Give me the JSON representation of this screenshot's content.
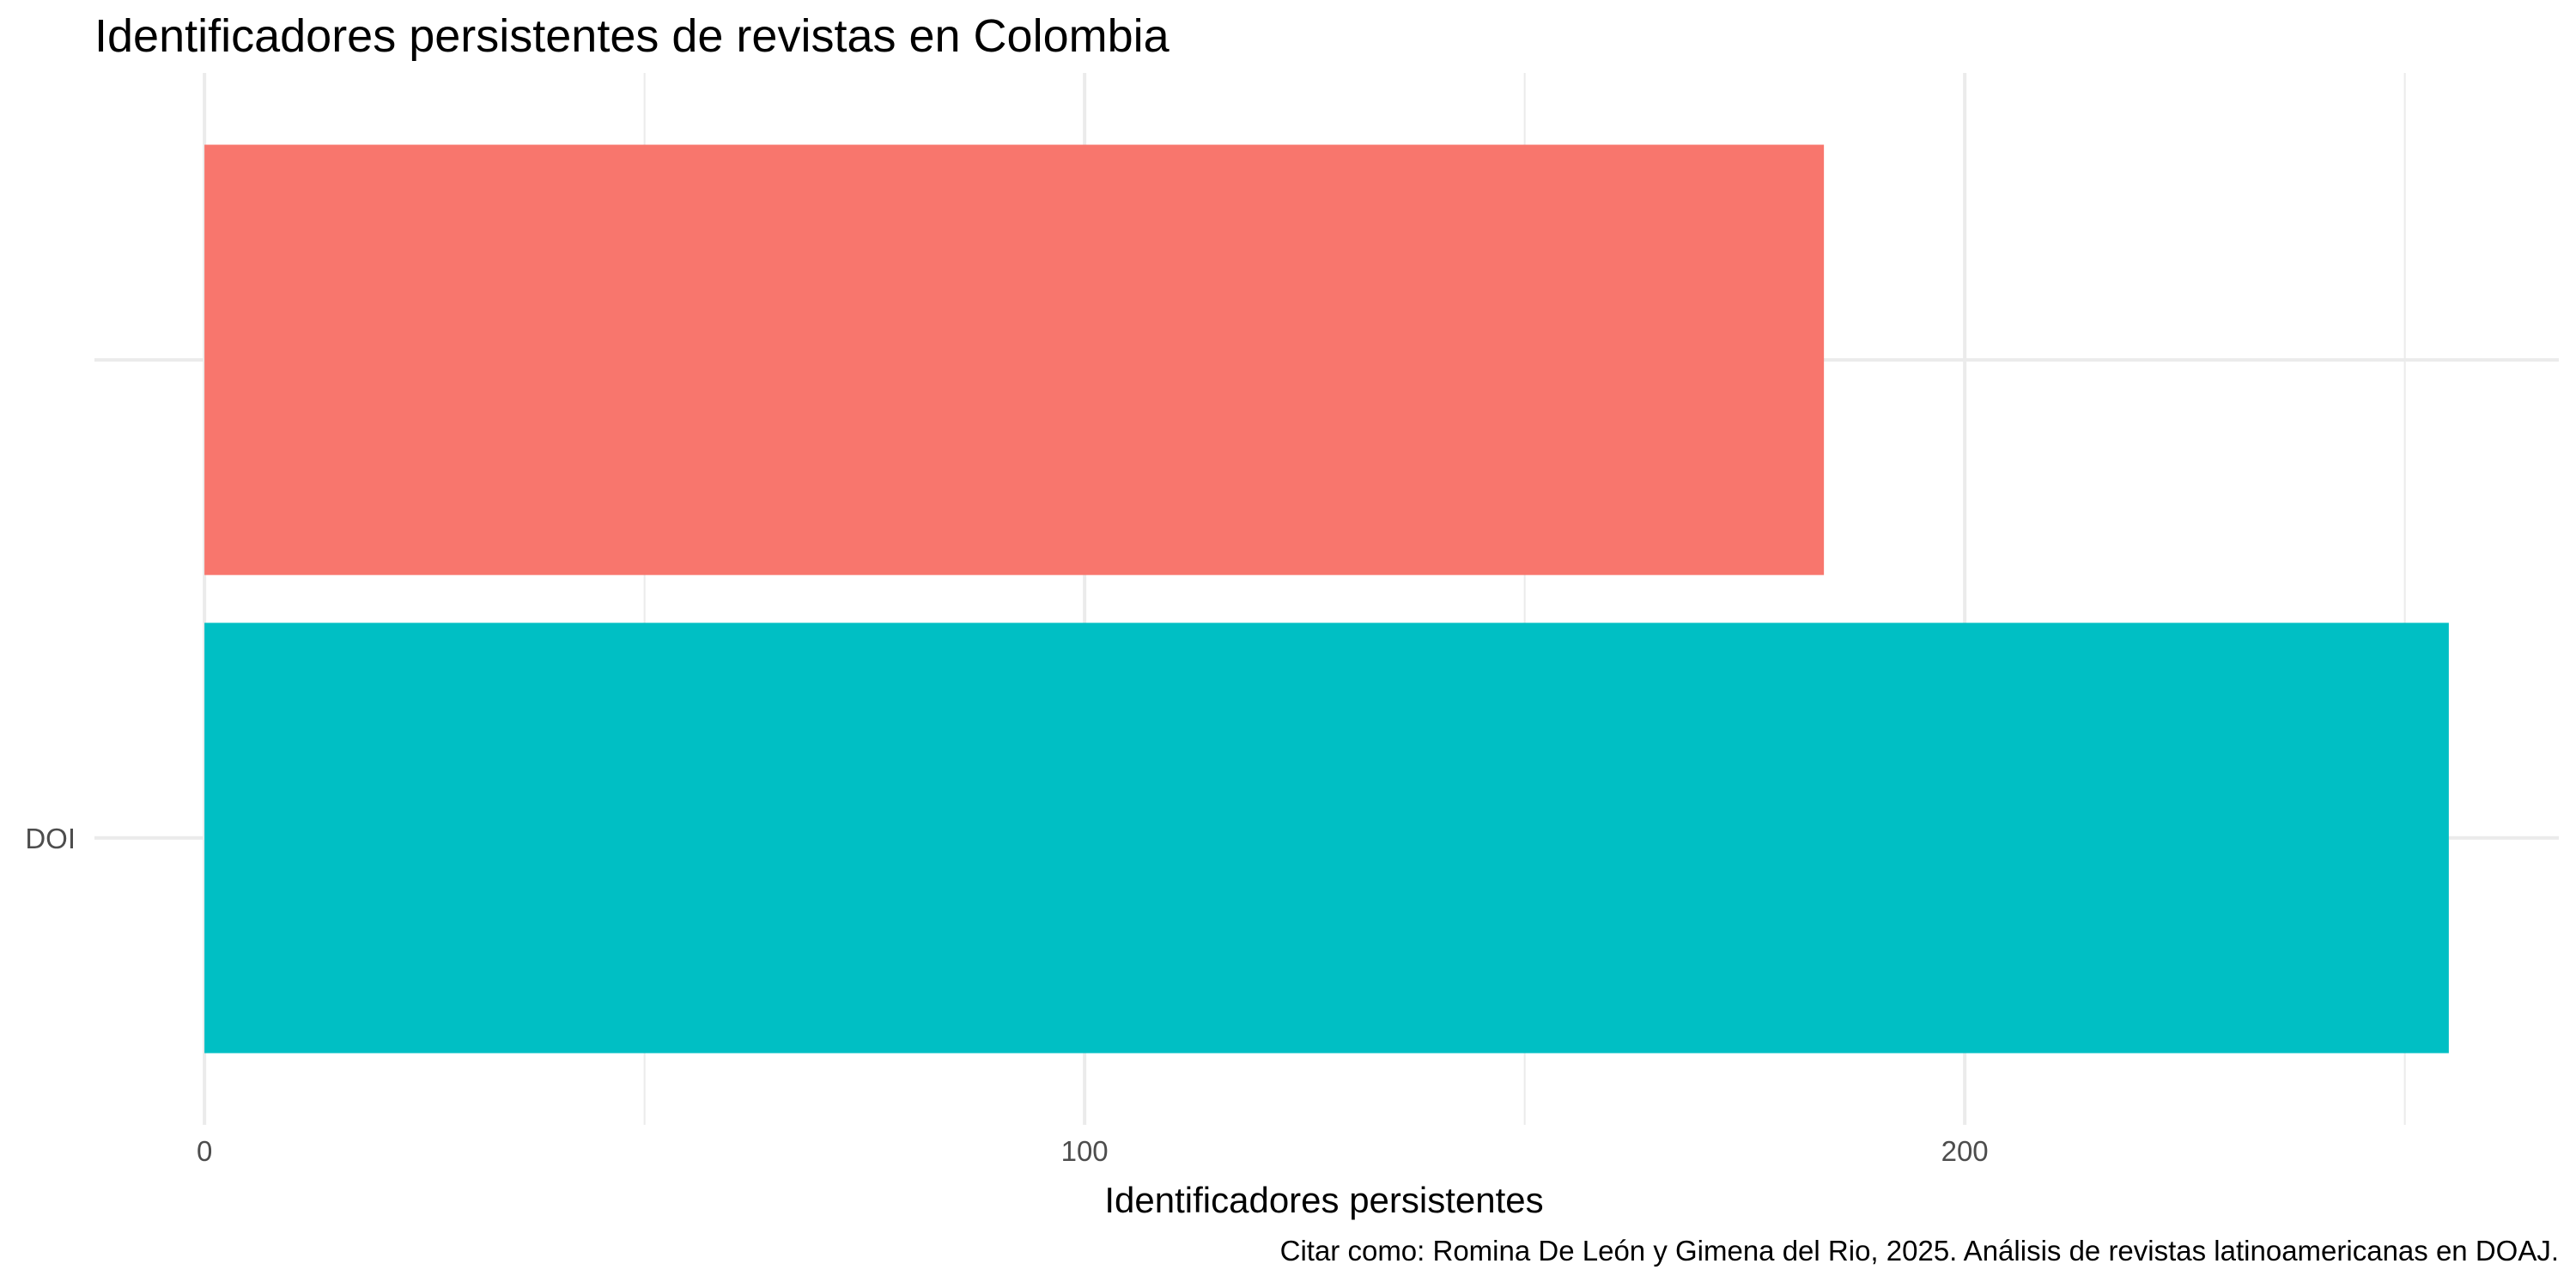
{
  "chart_data": {
    "type": "bar",
    "orientation": "horizontal",
    "title": "Identificadores persistentes de revistas en Colombia",
    "xlabel": "Identificadores persistentes",
    "ylabel": "",
    "caption": "Citar como: Romina De León y Gimena del Rio, 2025. Análisis de revistas latinoamericanas en DOAJ.",
    "categories": [
      "DOI",
      ""
    ],
    "values": [
      255,
      184
    ],
    "colors": [
      "#00BFC4",
      "#F8766D"
    ],
    "xlim": [
      -12.5,
      267.5
    ],
    "x_ticks": [
      0,
      100,
      200
    ],
    "x_tick_labels": [
      "0",
      "100",
      "200"
    ],
    "x_minor_ticks": [
      50,
      150,
      250
    ],
    "grid": true,
    "legend": "none"
  }
}
